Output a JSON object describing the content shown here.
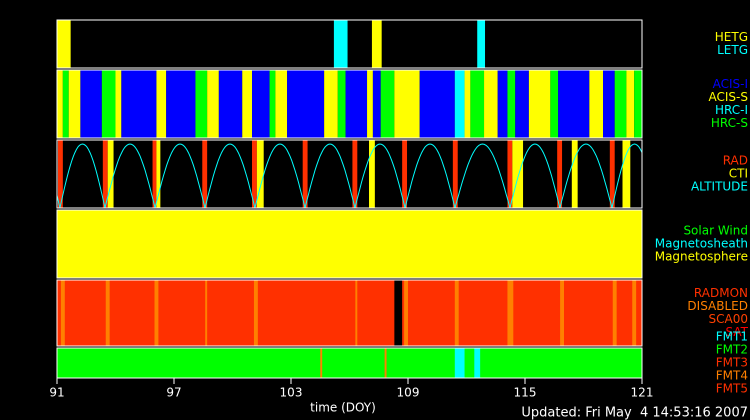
{
  "chart_data": {
    "type": "timeline",
    "xlim": [
      91,
      121
    ],
    "xticks": [
      91,
      97,
      103,
      109,
      115,
      121
    ],
    "xlabel": "time (DOY)",
    "footer": "Updated: Fri May  4 14:53:16 2007",
    "panels": [
      {
        "legend": [
          {
            "label": "HETG",
            "color": "#ffff00"
          },
          {
            "label": "LETG",
            "color": "#00ffff"
          }
        ],
        "segments": [
          [
            91,
            91.7,
            "HETG"
          ],
          [
            105.2,
            105.9,
            "LETG"
          ],
          [
            107.15,
            107.65,
            "HETG"
          ],
          [
            112.55,
            112.95,
            "LETG"
          ]
        ]
      },
      {
        "legend": [
          {
            "label": "ACIS-I",
            "color": "#0000ff"
          },
          {
            "label": "ACIS-S",
            "color": "#ffff00"
          },
          {
            "label": "HRC-I",
            "color": "#00ffff"
          },
          {
            "label": "HRC-S",
            "color": "#00ff00"
          }
        ],
        "segments": [
          [
            91,
            91.3,
            "ACIS-S"
          ],
          [
            91.3,
            91.6,
            "HRC-S"
          ],
          [
            91.6,
            92.2,
            "ACIS-S"
          ],
          [
            92.2,
            93.3,
            "ACIS-I"
          ],
          [
            93.3,
            94,
            "HRC-S"
          ],
          [
            94,
            94.3,
            "ACIS-S"
          ],
          [
            94.3,
            96.1,
            "ACIS-I"
          ],
          [
            96.1,
            96.6,
            "ACIS-S"
          ],
          [
            96.6,
            98.1,
            "ACIS-I"
          ],
          [
            98.1,
            98.7,
            "HRC-S"
          ],
          [
            98.7,
            99.3,
            "ACIS-S"
          ],
          [
            99.3,
            100.5,
            "ACIS-I"
          ],
          [
            100.5,
            101,
            "ACIS-S"
          ],
          [
            101,
            101.9,
            "ACIS-I"
          ],
          [
            101.9,
            102.2,
            "HRC-S"
          ],
          [
            102.2,
            102.8,
            "ACIS-S"
          ],
          [
            102.8,
            104.7,
            "ACIS-I"
          ],
          [
            104.7,
            105.4,
            "ACIS-S"
          ],
          [
            105.4,
            105.8,
            "HRC-S"
          ],
          [
            105.8,
            106.9,
            "ACIS-I"
          ],
          [
            106.9,
            107.2,
            "ACIS-S"
          ],
          [
            107.2,
            107.6,
            "ACIS-I"
          ],
          [
            107.6,
            108.3,
            "HRC-S"
          ],
          [
            108.3,
            109.6,
            "ACIS-S"
          ],
          [
            109.6,
            111.4,
            "ACIS-I"
          ],
          [
            111.4,
            111.9,
            "HRC-I"
          ],
          [
            111.9,
            112.2,
            "ACIS-S"
          ],
          [
            112.2,
            112.9,
            "HRC-S"
          ],
          [
            112.9,
            113.6,
            "ACIS-S"
          ],
          [
            113.6,
            114.1,
            "ACIS-I"
          ],
          [
            114.1,
            114.5,
            "HRC-S"
          ],
          [
            114.5,
            115.2,
            "ACIS-I"
          ],
          [
            115.2,
            116.3,
            "ACIS-S"
          ],
          [
            116.3,
            116.7,
            "HRC-S"
          ],
          [
            116.7,
            118.3,
            "ACIS-I"
          ],
          [
            118.3,
            119,
            "ACIS-S"
          ],
          [
            119,
            119.6,
            "ACIS-I"
          ],
          [
            119.6,
            120.2,
            "HRC-S"
          ],
          [
            120.2,
            120.6,
            "ACIS-S"
          ],
          [
            120.6,
            121,
            "HRC-S"
          ]
        ]
      },
      {
        "legend": [
          {
            "label": "RAD",
            "color": "#ff3000"
          },
          {
            "label": "CTI",
            "color": "#ffff00"
          },
          {
            "label": "ALTITUDE",
            "color": "#00ffff"
          }
        ],
        "segments": [
          [
            91.05,
            91.3,
            "RAD"
          ],
          [
            93.35,
            93.6,
            "RAD"
          ],
          [
            93.6,
            93.9,
            "CTI"
          ],
          [
            95.9,
            96.1,
            "RAD"
          ],
          [
            96.1,
            96.3,
            "CTI"
          ],
          [
            98.45,
            98.7,
            "RAD"
          ],
          [
            101.0,
            101.25,
            "RAD"
          ],
          [
            101.25,
            101.6,
            "CTI"
          ],
          [
            103.6,
            103.85,
            "RAD"
          ],
          [
            106.15,
            106.4,
            "RAD"
          ],
          [
            107.0,
            107.3,
            "CTI"
          ],
          [
            108.7,
            108.95,
            "RAD"
          ],
          [
            111.3,
            111.55,
            "RAD"
          ],
          [
            114.1,
            114.35,
            "RAD"
          ],
          [
            114.35,
            114.9,
            "CTI"
          ],
          [
            116.65,
            116.9,
            "RAD"
          ],
          [
            117.4,
            117.7,
            "CTI"
          ],
          [
            119.35,
            119.6,
            "RAD"
          ],
          [
            120.0,
            120.4,
            "CTI"
          ]
        ],
        "altitude_minima": [
          91.15,
          93.46,
          96.03,
          98.59,
          101.15,
          103.72,
          106.28,
          108.85,
          111.41,
          114.23,
          116.79,
          119.46
        ]
      },
      {
        "legend": [
          {
            "label": "Solar Wind",
            "color": "#00ff00"
          },
          {
            "label": "Magnetosheath",
            "color": "#00ffff"
          },
          {
            "label": "Magnetosphere",
            "color": "#ffff00"
          }
        ],
        "segments": [
          [
            91,
            121,
            "Magnetosphere"
          ]
        ]
      },
      {
        "legend": [
          {
            "label": "RADMON",
            "color": "#ff3000"
          },
          {
            "label": "DISABLED",
            "color": "#ff8000"
          },
          {
            "label": "SCA00",
            "color": "#ff4000"
          },
          {
            "label": "SAT",
            "color": "#ff0000"
          }
        ],
        "segments": [
          [
            91,
            108.3,
            "RADMON"
          ],
          [
            108.7,
            121,
            "RADMON"
          ],
          [
            91.2,
            91.4,
            "DISABLED"
          ],
          [
            93.5,
            93.7,
            "DISABLED"
          ],
          [
            96.0,
            96.2,
            "DISABLED"
          ],
          [
            98.6,
            98.7,
            "DISABLED"
          ],
          [
            101.1,
            101.3,
            "DISABLED"
          ],
          [
            106.3,
            106.4,
            "DISABLED"
          ],
          [
            108.8,
            109.0,
            "DISABLED"
          ],
          [
            111.4,
            111.6,
            "DISABLED"
          ],
          [
            114.1,
            114.4,
            "DISABLED"
          ],
          [
            116.8,
            117.0,
            "DISABLED"
          ],
          [
            119.5,
            119.7,
            "DISABLED"
          ],
          [
            120.5,
            120.7,
            "DISABLED"
          ]
        ]
      },
      {
        "legend": [
          {
            "label": "FMT1",
            "color": "#00ffff"
          },
          {
            "label": "FMT2",
            "color": "#00ff00"
          },
          {
            "label": "FMT3",
            "color": "#ff3000"
          },
          {
            "label": "FMT4",
            "color": "#ff8000"
          },
          {
            "label": "FMT5",
            "color": "#ff3000"
          }
        ],
        "segments": [
          [
            91,
            121,
            "FMT2"
          ],
          [
            104.5,
            104.6,
            "FMT4"
          ],
          [
            107.8,
            107.9,
            "FMT4"
          ],
          [
            111.4,
            111.9,
            "FMT1"
          ],
          [
            112.4,
            112.7,
            "FMT1"
          ]
        ]
      }
    ]
  }
}
